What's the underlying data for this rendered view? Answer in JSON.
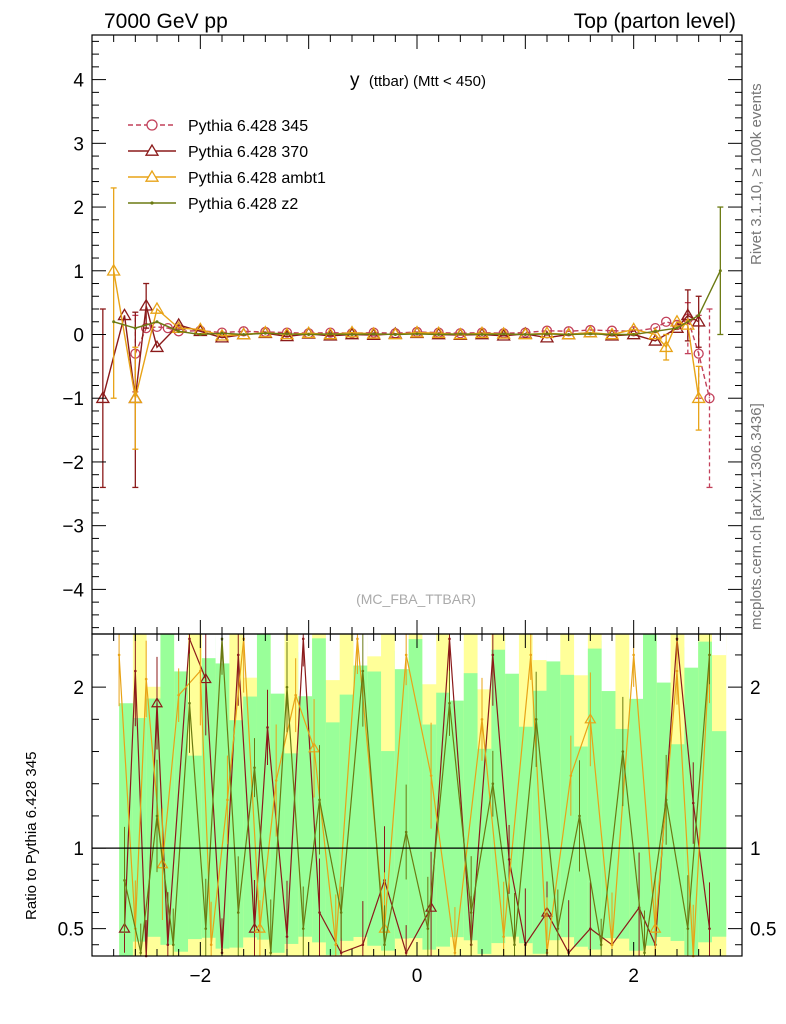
{
  "header": {
    "left": "7000 GeV pp",
    "right": "Top (parton level)"
  },
  "side_labels": {
    "rivet": "Rivet 3.1.10, ≥ 100k events",
    "mcplots": "mcplots.cern.ch [arXiv:1306.3436]"
  },
  "chart_data": [
    {
      "type": "line",
      "title_main": "y",
      "title_sub": "(ttbar) (Mtt < 450)",
      "watermark": "(MC_FBA_TTBAR)",
      "xlim": [
        -3.0,
        3.0
      ],
      "ylim": [
        -4.7,
        4.7
      ],
      "yticks": [
        "4",
        "3",
        "2",
        "1",
        "0",
        "−1",
        "−2",
        "−3",
        "−4"
      ],
      "legend_position": "top-left",
      "series": [
        {
          "name": "Pythia 6.428 345",
          "color": "#c2405a",
          "marker": "circle",
          "dash": true,
          "points": [
            [
              -2.6,
              -0.3
            ],
            [
              -2.5,
              0.1
            ],
            [
              -2.4,
              0.12
            ],
            [
              -2.3,
              0.1
            ],
            [
              -2.2,
              0.05
            ],
            [
              -2.0,
              0.06
            ],
            [
              -1.8,
              0.03
            ],
            [
              -1.6,
              0.05
            ],
            [
              -1.4,
              0.04
            ],
            [
              -1.2,
              0.03
            ],
            [
              -1.0,
              0.02
            ],
            [
              -0.8,
              0.03
            ],
            [
              -0.6,
              0.02
            ],
            [
              -0.4,
              0.03
            ],
            [
              -0.2,
              0.02
            ],
            [
              0.0,
              0.04
            ],
            [
              0.2,
              0.03
            ],
            [
              0.4,
              0.02
            ],
            [
              0.6,
              0.03
            ],
            [
              0.8,
              0.02
            ],
            [
              1.0,
              0.03
            ],
            [
              1.2,
              0.06
            ],
            [
              1.4,
              0.05
            ],
            [
              1.6,
              0.07
            ],
            [
              1.8,
              0.06
            ],
            [
              2.0,
              0.05
            ],
            [
              2.2,
              0.1
            ],
            [
              2.3,
              0.2
            ],
            [
              2.4,
              0.15
            ],
            [
              2.5,
              0.25
            ],
            [
              2.6,
              -0.3
            ],
            [
              2.7,
              -1.0
            ]
          ],
          "errors": [
            [
              -2.6,
              -0.9,
              0.3
            ],
            [
              2.5,
              -0.3,
              0.5
            ],
            [
              2.6,
              -1.0,
              0.3
            ],
            [
              2.7,
              -2.4,
              0.4
            ]
          ]
        },
        {
          "name": "Pythia 6.428 370",
          "color": "#8b1a1a",
          "marker": "triangle",
          "dash": false,
          "points": [
            [
              -2.9,
              -1.0
            ],
            [
              -2.7,
              0.3
            ],
            [
              -2.6,
              -1.0
            ],
            [
              -2.5,
              0.45
            ],
            [
              -2.4,
              -0.2
            ],
            [
              -2.2,
              0.15
            ],
            [
              -2.0,
              0.05
            ],
            [
              -1.8,
              -0.05
            ],
            [
              -1.6,
              0.0
            ],
            [
              -1.4,
              0.02
            ],
            [
              -1.2,
              -0.03
            ],
            [
              -1.0,
              0.01
            ],
            [
              -0.8,
              -0.02
            ],
            [
              -0.6,
              0.0
            ],
            [
              -0.4,
              -0.01
            ],
            [
              -0.2,
              0.01
            ],
            [
              0.0,
              0.02
            ],
            [
              0.2,
              0.0
            ],
            [
              0.4,
              -0.01
            ],
            [
              0.6,
              0.0
            ],
            [
              0.8,
              -0.02
            ],
            [
              1.0,
              0.01
            ],
            [
              1.2,
              -0.05
            ],
            [
              1.4,
              0.0
            ],
            [
              1.6,
              0.03
            ],
            [
              1.8,
              -0.02
            ],
            [
              2.0,
              0.0
            ],
            [
              2.2,
              -0.1
            ],
            [
              2.4,
              0.1
            ],
            [
              2.5,
              0.3
            ],
            [
              2.6,
              0.2
            ]
          ],
          "errors": [
            [
              -2.9,
              -2.4,
              0.4
            ],
            [
              -2.6,
              -2.4,
              0.35
            ],
            [
              -2.5,
              0.1,
              0.8
            ],
            [
              2.5,
              -0.1,
              0.7
            ],
            [
              2.6,
              -0.2,
              0.6
            ]
          ]
        },
        {
          "name": "Pythia 6.428 ambt1",
          "color": "#e8a317",
          "marker": "triangle",
          "dash": false,
          "points": [
            [
              -2.8,
              1.0
            ],
            [
              -2.6,
              -1.0
            ],
            [
              -2.4,
              0.4
            ],
            [
              -2.2,
              0.1
            ],
            [
              -2.0,
              0.08
            ],
            [
              -1.8,
              -0.02
            ],
            [
              -1.6,
              0.0
            ],
            [
              -1.4,
              0.03
            ],
            [
              -1.2,
              0.0
            ],
            [
              -1.0,
              0.02
            ],
            [
              -0.8,
              0.0
            ],
            [
              -0.6,
              0.03
            ],
            [
              -0.4,
              0.01
            ],
            [
              -0.2,
              0.0
            ],
            [
              0.0,
              0.03
            ],
            [
              0.2,
              0.02
            ],
            [
              0.4,
              0.0
            ],
            [
              0.6,
              0.02
            ],
            [
              0.8,
              0.01
            ],
            [
              1.0,
              0.0
            ],
            [
              1.2,
              0.02
            ],
            [
              1.4,
              0.0
            ],
            [
              1.6,
              0.03
            ],
            [
              1.8,
              0.0
            ],
            [
              2.0,
              0.08
            ],
            [
              2.2,
              0.0
            ],
            [
              2.3,
              -0.2
            ],
            [
              2.4,
              0.2
            ],
            [
              2.5,
              0.15
            ],
            [
              2.6,
              -1.0
            ]
          ],
          "errors": [
            [
              -2.8,
              -1.0,
              2.3
            ],
            [
              -2.6,
              -1.8,
              -0.2
            ],
            [
              2.6,
              -1.5,
              -0.5
            ],
            [
              2.3,
              -0.4,
              0.0
            ]
          ]
        },
        {
          "name": "Pythia 6.428 z2",
          "color": "#6b7a12",
          "marker": "dot",
          "dash": false,
          "points": [
            [
              -2.8,
              0.2
            ],
            [
              -2.6,
              0.1
            ],
            [
              -2.4,
              0.2
            ],
            [
              -2.2,
              0.05
            ],
            [
              -2.0,
              0.0
            ],
            [
              -1.8,
              0.02
            ],
            [
              -1.6,
              0.0
            ],
            [
              -1.4,
              0.02
            ],
            [
              -1.2,
              0.01
            ],
            [
              -1.0,
              0.0
            ],
            [
              -0.8,
              0.01
            ],
            [
              -0.6,
              0.0
            ],
            [
              -0.4,
              0.01
            ],
            [
              -0.2,
              0.0
            ],
            [
              0.0,
              0.01
            ],
            [
              0.2,
              0.0
            ],
            [
              0.4,
              0.01
            ],
            [
              0.6,
              0.0
            ],
            [
              0.8,
              0.01
            ],
            [
              1.0,
              0.0
            ],
            [
              1.2,
              0.01
            ],
            [
              1.4,
              0.0
            ],
            [
              1.6,
              0.01
            ],
            [
              1.8,
              0.0
            ],
            [
              2.0,
              0.0
            ],
            [
              2.2,
              0.05
            ],
            [
              2.4,
              0.1
            ],
            [
              2.6,
              0.3
            ],
            [
              2.8,
              1.0
            ]
          ],
          "errors": [
            [
              2.8,
              0.0,
              2.0
            ]
          ]
        }
      ]
    },
    {
      "type": "line",
      "ylabel": "Ratio to Pythia 6.428 345",
      "xlim": [
        -3.0,
        3.0
      ],
      "ylim": [
        0.33,
        2.33
      ],
      "xticks": [
        "−2",
        "0",
        "2"
      ],
      "yticks": [
        "2",
        "1",
        "0.5"
      ],
      "reference_line": 1.0,
      "bands": {
        "yellow": "#ffff99",
        "green": "#99ff99"
      },
      "series": [
        {
          "name": "Pythia 6.428 370",
          "color": "#8b1a1a",
          "points": [
            [
              -2.7,
              0.5
            ],
            [
              -2.6,
              2.1
            ],
            [
              -2.5,
              0.3
            ],
            [
              -2.4,
              1.9
            ],
            [
              -2.3,
              0.4
            ],
            [
              -2.1,
              2.3
            ],
            [
              -1.95,
              2.05
            ],
            [
              -1.8,
              0.35
            ],
            [
              -1.65,
              2.2
            ],
            [
              -1.5,
              0.5
            ],
            [
              -1.38,
              1.75
            ],
            [
              -1.2,
              0.45
            ],
            [
              -1.05,
              2.3
            ],
            [
              -0.9,
              0.6
            ],
            [
              -0.7,
              0.35
            ],
            [
              -0.5,
              0.4
            ],
            [
              -0.3,
              0.8
            ],
            [
              -0.1,
              0.35
            ],
            [
              0.13,
              0.63
            ],
            [
              0.3,
              2.3
            ],
            [
              0.5,
              0.4
            ],
            [
              0.7,
              2.2
            ],
            [
              0.85,
              0.93
            ],
            [
              1.0,
              0.4
            ],
            [
              1.2,
              0.6
            ],
            [
              1.4,
              0.35
            ],
            [
              1.6,
              0.5
            ],
            [
              1.8,
              0.4
            ],
            [
              2.05,
              0.63
            ],
            [
              2.2,
              0.4
            ],
            [
              2.4,
              2.3
            ],
            [
              2.55,
              1.28
            ],
            [
              2.7,
              0.5
            ]
          ]
        },
        {
          "name": "Pythia 6.428 ambt1",
          "color": "#e8a317",
          "points": [
            [
              -2.75,
              2.2
            ],
            [
              -2.6,
              0.5
            ],
            [
              -2.5,
              2.05
            ],
            [
              -2.35,
              0.9
            ],
            [
              -2.2,
              1.95
            ],
            [
              -2.0,
              2.1
            ],
            [
              -1.9,
              0.4
            ],
            [
              -1.75,
              1.3
            ],
            [
              -1.6,
              2.3
            ],
            [
              -1.45,
              0.5
            ],
            [
              -1.3,
              1.42
            ],
            [
              -1.12,
              1.95
            ],
            [
              -0.95,
              1.62
            ],
            [
              -0.75,
              0.4
            ],
            [
              -0.55,
              2.3
            ],
            [
              -0.3,
              0.5
            ],
            [
              -0.1,
              2.2
            ],
            [
              0.13,
              1.45
            ],
            [
              0.35,
              0.35
            ],
            [
              0.6,
              1.8
            ],
            [
              0.8,
              0.45
            ],
            [
              1.05,
              2.2
            ],
            [
              1.2,
              0.35
            ],
            [
              1.42,
              1.45
            ],
            [
              1.6,
              1.8
            ],
            [
              1.8,
              0.4
            ],
            [
              2.0,
              2.2
            ],
            [
              2.2,
              0.5
            ],
            [
              2.4,
              2.1
            ],
            [
              2.55,
              0.33
            ],
            [
              2.7,
              2.2
            ]
          ]
        },
        {
          "name": "Pythia 6.428 z2",
          "color": "#6b7a12",
          "points": [
            [
              -2.7,
              0.8
            ],
            [
              -2.55,
              0.35
            ],
            [
              -2.4,
              1.2
            ],
            [
              -2.25,
              0.4
            ],
            [
              -2.1,
              1.9
            ],
            [
              -1.95,
              0.5
            ],
            [
              -1.8,
              2.3
            ],
            [
              -1.65,
              0.6
            ],
            [
              -1.5,
              1.5
            ],
            [
              -1.35,
              0.35
            ],
            [
              -1.2,
              2.0
            ],
            [
              -1.05,
              0.5
            ],
            [
              -0.9,
              1.3
            ],
            [
              -0.7,
              0.6
            ],
            [
              -0.5,
              2.1
            ],
            [
              -0.3,
              0.4
            ],
            [
              -0.1,
              1.1
            ],
            [
              0.1,
              0.5
            ],
            [
              0.3,
              1.9
            ],
            [
              0.5,
              0.6
            ],
            [
              0.7,
              1.4
            ],
            [
              0.9,
              0.4
            ],
            [
              1.1,
              1.8
            ],
            [
              1.3,
              0.5
            ],
            [
              1.5,
              1.2
            ],
            [
              1.7,
              0.4
            ],
            [
              1.9,
              1.6
            ],
            [
              2.1,
              0.35
            ],
            [
              2.3,
              1.3
            ],
            [
              2.5,
              0.5
            ],
            [
              2.7,
              2.2
            ]
          ]
        }
      ]
    }
  ]
}
